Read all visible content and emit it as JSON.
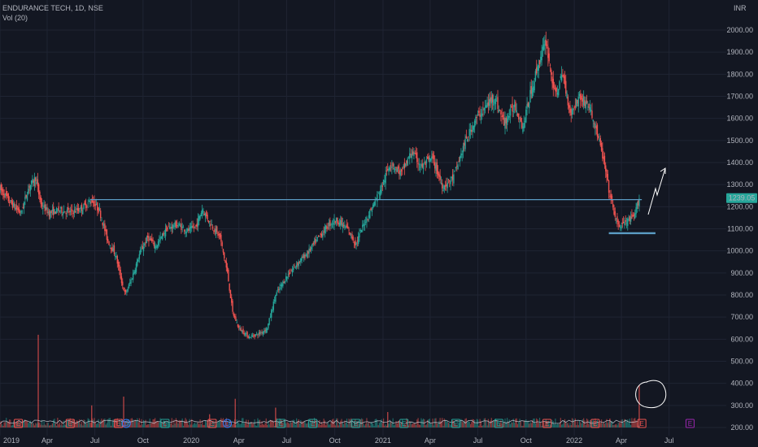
{
  "header": {
    "symbol_line": "ENDURANCE TECH, 1D, NSE",
    "volume_label": "Vol (20)"
  },
  "colors": {
    "background": "#131722",
    "up": "#26a69a",
    "down": "#ef5350",
    "grid": "#1f2433",
    "level": "#5b9cc4",
    "price_badge": "#26a69a",
    "annotation": "#ffffff"
  },
  "price_badge": "1239.05",
  "currency_label": "INR",
  "chart_data": {
    "type": "candlestick",
    "title": "ENDURANCE TECH, 1D, NSE",
    "y_axis": {
      "ticks": [
        "2000.00",
        "1900.00",
        "1800.00",
        "1700.00",
        "1600.00",
        "1500.00",
        "1400.00",
        "1300.00",
        "1200.00",
        "1100.00",
        "1000.00",
        "900.00",
        "800.00",
        "700.00",
        "600.00",
        "500.00",
        "400.00",
        "300.00",
        "200.00"
      ],
      "range": [
        180,
        2030
      ],
      "position": "right"
    },
    "x_axis": {
      "ticks": [
        "2019",
        "Apr",
        "Jul",
        "Oct",
        "2020",
        "Apr",
        "Jul",
        "Oct",
        "2021",
        "Apr",
        "Jul",
        "Oct",
        "2022",
        "Apr",
        "Jul"
      ],
      "range": [
        "2019-01-01",
        "2022-07-31"
      ]
    },
    "series": [
      {
        "name": "Price",
        "points": [
          {
            "date": "2019-01-01",
            "value": 1280
          },
          {
            "date": "2019-01-20",
            "value": 1220
          },
          {
            "date": "2019-02-10",
            "value": 1170
          },
          {
            "date": "2019-02-25",
            "value": 1290
          },
          {
            "date": "2019-03-10",
            "value": 1330
          },
          {
            "date": "2019-03-20",
            "value": 1210
          },
          {
            "date": "2019-04-05",
            "value": 1170
          },
          {
            "date": "2019-04-25",
            "value": 1185
          },
          {
            "date": "2019-05-15",
            "value": 1175
          },
          {
            "date": "2019-06-05",
            "value": 1190
          },
          {
            "date": "2019-06-25",
            "value": 1230
          },
          {
            "date": "2019-07-10",
            "value": 1180
          },
          {
            "date": "2019-07-25",
            "value": 1050
          },
          {
            "date": "2019-08-10",
            "value": 980
          },
          {
            "date": "2019-08-20",
            "value": 870
          },
          {
            "date": "2019-08-28",
            "value": 800
          },
          {
            "date": "2019-09-10",
            "value": 880
          },
          {
            "date": "2019-09-25",
            "value": 990
          },
          {
            "date": "2019-10-10",
            "value": 1060
          },
          {
            "date": "2019-10-25",
            "value": 1020
          },
          {
            "date": "2019-11-15",
            "value": 1100
          },
          {
            "date": "2019-12-05",
            "value": 1120
          },
          {
            "date": "2019-12-25",
            "value": 1090
          },
          {
            "date": "2020-01-10",
            "value": 1110
          },
          {
            "date": "2020-01-22",
            "value": 1190
          },
          {
            "date": "2020-02-05",
            "value": 1130
          },
          {
            "date": "2020-02-25",
            "value": 1060
          },
          {
            "date": "2020-03-10",
            "value": 900
          },
          {
            "date": "2020-03-20",
            "value": 720
          },
          {
            "date": "2020-04-01",
            "value": 650
          },
          {
            "date": "2020-04-20",
            "value": 610
          },
          {
            "date": "2020-05-10",
            "value": 625
          },
          {
            "date": "2020-05-25",
            "value": 650
          },
          {
            "date": "2020-06-10",
            "value": 800
          },
          {
            "date": "2020-06-30",
            "value": 880
          },
          {
            "date": "2020-07-20",
            "value": 940
          },
          {
            "date": "2020-08-10",
            "value": 990
          },
          {
            "date": "2020-08-31",
            "value": 1060
          },
          {
            "date": "2020-09-20",
            "value": 1120
          },
          {
            "date": "2020-10-05",
            "value": 1140
          },
          {
            "date": "2020-10-25",
            "value": 1100
          },
          {
            "date": "2020-11-10",
            "value": 1030
          },
          {
            "date": "2020-11-25",
            "value": 1120
          },
          {
            "date": "2020-12-10",
            "value": 1190
          },
          {
            "date": "2020-12-31",
            "value": 1300
          },
          {
            "date": "2021-01-15",
            "value": 1400
          },
          {
            "date": "2021-02-05",
            "value": 1350
          },
          {
            "date": "2021-02-25",
            "value": 1450
          },
          {
            "date": "2021-03-15",
            "value": 1380
          },
          {
            "date": "2021-04-05",
            "value": 1420
          },
          {
            "date": "2021-04-25",
            "value": 1290
          },
          {
            "date": "2021-05-15",
            "value": 1330
          },
          {
            "date": "2021-06-05",
            "value": 1480
          },
          {
            "date": "2021-06-25",
            "value": 1590
          },
          {
            "date": "2021-07-15",
            "value": 1650
          },
          {
            "date": "2021-08-01",
            "value": 1700
          },
          {
            "date": "2021-08-20",
            "value": 1580
          },
          {
            "date": "2021-09-10",
            "value": 1660
          },
          {
            "date": "2021-09-25",
            "value": 1560
          },
          {
            "date": "2021-10-10",
            "value": 1720
          },
          {
            "date": "2021-10-25",
            "value": 1850
          },
          {
            "date": "2021-11-08",
            "value": 1950
          },
          {
            "date": "2021-11-25",
            "value": 1700
          },
          {
            "date": "2021-12-10",
            "value": 1800
          },
          {
            "date": "2021-12-25",
            "value": 1620
          },
          {
            "date": "2022-01-10",
            "value": 1700
          },
          {
            "date": "2022-01-28",
            "value": 1660
          },
          {
            "date": "2022-02-12",
            "value": 1550
          },
          {
            "date": "2022-02-25",
            "value": 1420
          },
          {
            "date": "2022-03-10",
            "value": 1250
          },
          {
            "date": "2022-03-25",
            "value": 1110
          },
          {
            "date": "2022-04-10",
            "value": 1130
          },
          {
            "date": "2022-04-25",
            "value": 1150
          },
          {
            "date": "2022-05-05",
            "value": 1239
          }
        ]
      },
      {
        "name": "Vol (20)",
        "volume_spikes": [
          {
            "date": "2019-03-15",
            "value": 620
          },
          {
            "date": "2019-06-25",
            "value": 300
          },
          {
            "date": "2019-08-25",
            "value": 340
          },
          {
            "date": "2020-02-05",
            "value": 260
          },
          {
            "date": "2020-03-25",
            "value": 330
          },
          {
            "date": "2020-06-10",
            "value": 290
          },
          {
            "date": "2021-01-10",
            "value": 270
          },
          {
            "date": "2022-03-10",
            "value": 240
          },
          {
            "date": "2022-05-05",
            "value": 390
          }
        ]
      }
    ],
    "levels": [
      {
        "from": "2019-06-22",
        "to": "2022-05-10",
        "value": 1232
      },
      {
        "from": "2022-03-08",
        "to": "2022-06-05",
        "value": 1080
      }
    ],
    "events": [
      {
        "date": "2019-02-05",
        "label": "E",
        "color": "#ef5350"
      },
      {
        "date": "2019-05-15",
        "label": "E",
        "color": "#ef5350"
      },
      {
        "date": "2019-08-15",
        "label": "E",
        "color": "#ef5350"
      },
      {
        "date": "2019-08-30",
        "label": "D",
        "color": "#3179f5"
      },
      {
        "date": "2019-11-12",
        "label": "E",
        "color": "#26a69a"
      },
      {
        "date": "2020-02-10",
        "label": "E",
        "color": "#ef5350"
      },
      {
        "date": "2020-03-10",
        "label": "D",
        "color": "#3179f5"
      },
      {
        "date": "2020-06-20",
        "label": "E",
        "color": "#26a69a"
      },
      {
        "date": "2020-08-20",
        "label": "E",
        "color": "#26a69a"
      },
      {
        "date": "2020-11-10",
        "label": "E",
        "color": "#26a69a"
      },
      {
        "date": "2021-02-10",
        "label": "E",
        "color": "#26a69a"
      },
      {
        "date": "2021-05-20",
        "label": "E",
        "color": "#26a69a"
      },
      {
        "date": "2021-08-10",
        "label": "E",
        "color": "#26a69a"
      },
      {
        "date": "2021-11-10",
        "label": "E",
        "color": "#ef5350"
      },
      {
        "date": "2022-02-10",
        "label": "E",
        "color": "#ef5350"
      },
      {
        "date": "2022-05-10",
        "label": "E",
        "color": "#ef5350"
      },
      {
        "date": "2022-08-10",
        "label": "E",
        "color": "#9c27b0"
      }
    ],
    "grid": true,
    "legend": "top-left"
  }
}
